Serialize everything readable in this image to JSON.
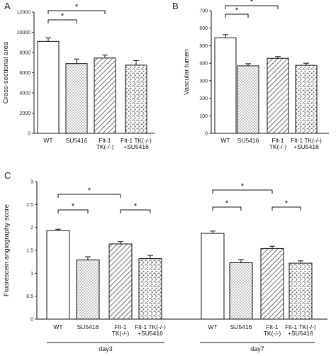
{
  "chart_data": [
    {
      "panel": "A",
      "type": "bar",
      "ylabel": "Cross-sectional area",
      "ylim": [
        0,
        12000
      ],
      "yticks": [
        "0",
        "2000",
        "4000",
        "6000",
        "8000",
        "10000",
        "12000"
      ],
      "categories": [
        "WT",
        "SU5416",
        "Flt-1\nTK(-/-)",
        "Flt-1 TK(-/-)\n+SU5416"
      ],
      "values": [
        9100,
        6900,
        7450,
        6750
      ],
      "errors": [
        350,
        450,
        300,
        450
      ],
      "patterns": [
        "white",
        "dots",
        "hatch",
        "dash"
      ],
      "significance": [
        {
          "from": 0,
          "to": 1,
          "label": "*"
        },
        {
          "from": 0,
          "to": 2,
          "label": "*"
        }
      ]
    },
    {
      "panel": "B",
      "type": "bar",
      "ylabel": "Vascular lumen",
      "ylim": [
        0,
        700
      ],
      "yticks": [
        "0",
        "100",
        "200",
        "300",
        "400",
        "500",
        "600",
        "700"
      ],
      "categories": [
        "WT",
        "SU5416",
        "Flt-1\nTK(-/-)",
        "Flt-1 TK(-/-)\n+SU5416"
      ],
      "values": [
        545,
        385,
        428,
        388
      ],
      "errors": [
        18,
        12,
        10,
        12
      ],
      "patterns": [
        "white",
        "dots",
        "hatch",
        "dash"
      ],
      "significance": [
        {
          "from": 0,
          "to": 1,
          "label": "*"
        },
        {
          "from": 0,
          "to": 2,
          "label": "*"
        }
      ]
    },
    {
      "panel": "C",
      "type": "bar",
      "ylabel": "Fluorescein angiography score",
      "ylim": [
        0,
        3
      ],
      "yticks": [
        "0",
        "0.5",
        "1",
        "1.5",
        "2",
        "2.5",
        "3"
      ],
      "groups": [
        {
          "label": "day3",
          "categories": [
            "WT",
            "SU5416",
            "Flt-1\nTK(-/-)",
            "Flt-1 TK(-/-)\n+SU5416"
          ],
          "values": [
            1.93,
            1.29,
            1.64,
            1.32
          ],
          "errors": [
            0.03,
            0.07,
            0.05,
            0.07
          ],
          "significance": [
            {
              "from": 0,
              "to": 1,
              "label": "*"
            },
            {
              "from": 0,
              "to": 2,
              "label": "*"
            },
            {
              "from": 2,
              "to": 3,
              "label": "*"
            }
          ]
        },
        {
          "label": "day7",
          "categories": [
            "WT",
            "SU5416",
            "Flt-1\nTK(-/-)",
            "Flt-1 TK(-/-)\n+SU5416"
          ],
          "values": [
            1.87,
            1.23,
            1.54,
            1.22
          ],
          "errors": [
            0.05,
            0.07,
            0.05,
            0.05
          ],
          "significance": [
            {
              "from": 0,
              "to": 1,
              "label": "*"
            },
            {
              "from": 0,
              "to": 2,
              "label": "*"
            },
            {
              "from": 2,
              "to": 3,
              "label": "*"
            }
          ]
        }
      ],
      "patterns": [
        "white",
        "dots",
        "hatch",
        "dash"
      ]
    }
  ]
}
